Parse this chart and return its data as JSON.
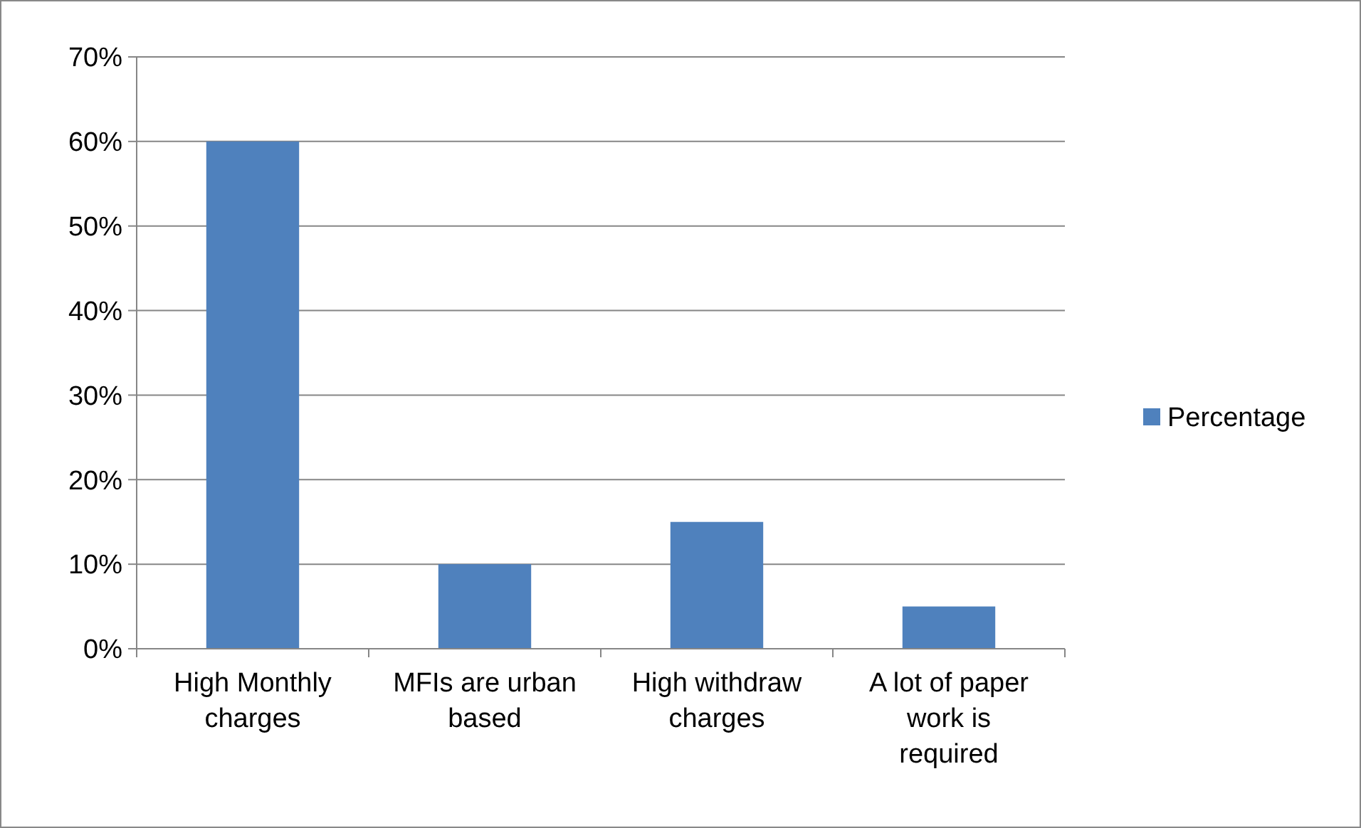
{
  "chart_data": {
    "type": "bar",
    "categories": [
      "High Monthly charges",
      "MFIs are urban based",
      "High withdraw charges",
      "A lot of paper work is required"
    ],
    "series": [
      {
        "name": "Percentage",
        "color": "#4f81bd",
        "values": [
          60,
          10,
          15,
          5
        ]
      }
    ],
    "ylim": [
      0,
      70
    ],
    "yticks": [
      {
        "value": 0,
        "label": "0%"
      },
      {
        "value": 10,
        "label": "10%"
      },
      {
        "value": 20,
        "label": "20%"
      },
      {
        "value": 30,
        "label": "30%"
      },
      {
        "value": 40,
        "label": "40%"
      },
      {
        "value": 50,
        "label": "50%"
      },
      {
        "value": 60,
        "label": "60%"
      },
      {
        "value": 70,
        "label": "70%"
      }
    ],
    "grid": "y",
    "legend": "right"
  }
}
